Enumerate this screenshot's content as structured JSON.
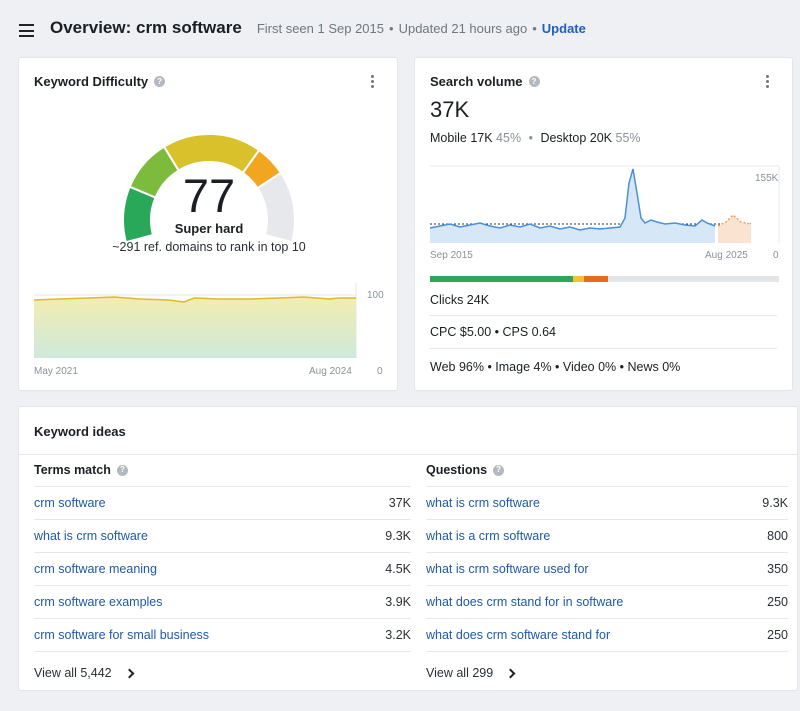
{
  "header": {
    "title": "Overview: crm software",
    "first_seen": "First seen 1 Sep 2015",
    "updated": "Updated 21 hours ago",
    "separator": "•",
    "update_link": "Update"
  },
  "keyword_difficulty": {
    "title": "Keyword Difficulty",
    "help_icon": "question-circle-icon",
    "menu_icon": "more-vertical-icon",
    "value": "77",
    "score": 77,
    "label": "Super hard",
    "description": "~291 ref. domains to rank in top 10",
    "chart": {
      "x_start": "May 2021",
      "x_end": "Aug 2024",
      "y_max": "100",
      "y_min": "0"
    }
  },
  "search_volume": {
    "title": "Search volume",
    "help_icon": "question-circle-icon",
    "menu_icon": "more-vertical-icon",
    "value": "37K",
    "mobile_label": "Mobile",
    "mobile_value": "17K",
    "mobile_pct": "45%",
    "separator": "•",
    "desktop_label": "Desktop",
    "desktop_value": "20K",
    "desktop_pct": "55%",
    "chart": {
      "y_max": "155K",
      "y_min": "0",
      "x_start": "Sep 2015",
      "x_end": "Aug 2025"
    },
    "clicks": "Clicks 24K",
    "cpc_line": "CPC $5.00 • CPS 0.64",
    "serp_line": "Web 96% • Image 4% • Video 0% • News 0%",
    "clicks_bar": [
      {
        "color": "#2ea65a",
        "fraction": 0.41
      },
      {
        "color": "#f2c230",
        "fraction": 0.03
      },
      {
        "color": "#e76a1f",
        "fraction": 0.07
      },
      {
        "color": "#e3e6e9",
        "fraction": 0.49
      }
    ]
  },
  "keyword_ideas": {
    "title": "Keyword ideas",
    "terms_match": {
      "heading": "Terms match",
      "rows": [
        {
          "keyword": "crm software",
          "volume": "37K"
        },
        {
          "keyword": "what is crm software",
          "volume": "9.3K"
        },
        {
          "keyword": "crm software meaning",
          "volume": "4.5K"
        },
        {
          "keyword": "crm software examples",
          "volume": "3.9K"
        },
        {
          "keyword": "crm software for small business",
          "volume": "3.2K"
        }
      ],
      "view_all": "View all 5,442"
    },
    "questions": {
      "heading": "Questions",
      "rows": [
        {
          "keyword": "what is crm software",
          "volume": "9.3K"
        },
        {
          "keyword": "what is a crm software",
          "volume": "800"
        },
        {
          "keyword": "what is crm software used for",
          "volume": "350"
        },
        {
          "keyword": "what does crm stand for in software",
          "volume": "250"
        },
        {
          "keyword": "what does crm software stand for",
          "volume": "250"
        }
      ],
      "view_all": "View all 299"
    }
  },
  "colors": {
    "link": "#1f5aa8",
    "update": "#1f5fbf",
    "line_yellow": "#e0b92a",
    "line_blue": "#4a90d9"
  }
}
